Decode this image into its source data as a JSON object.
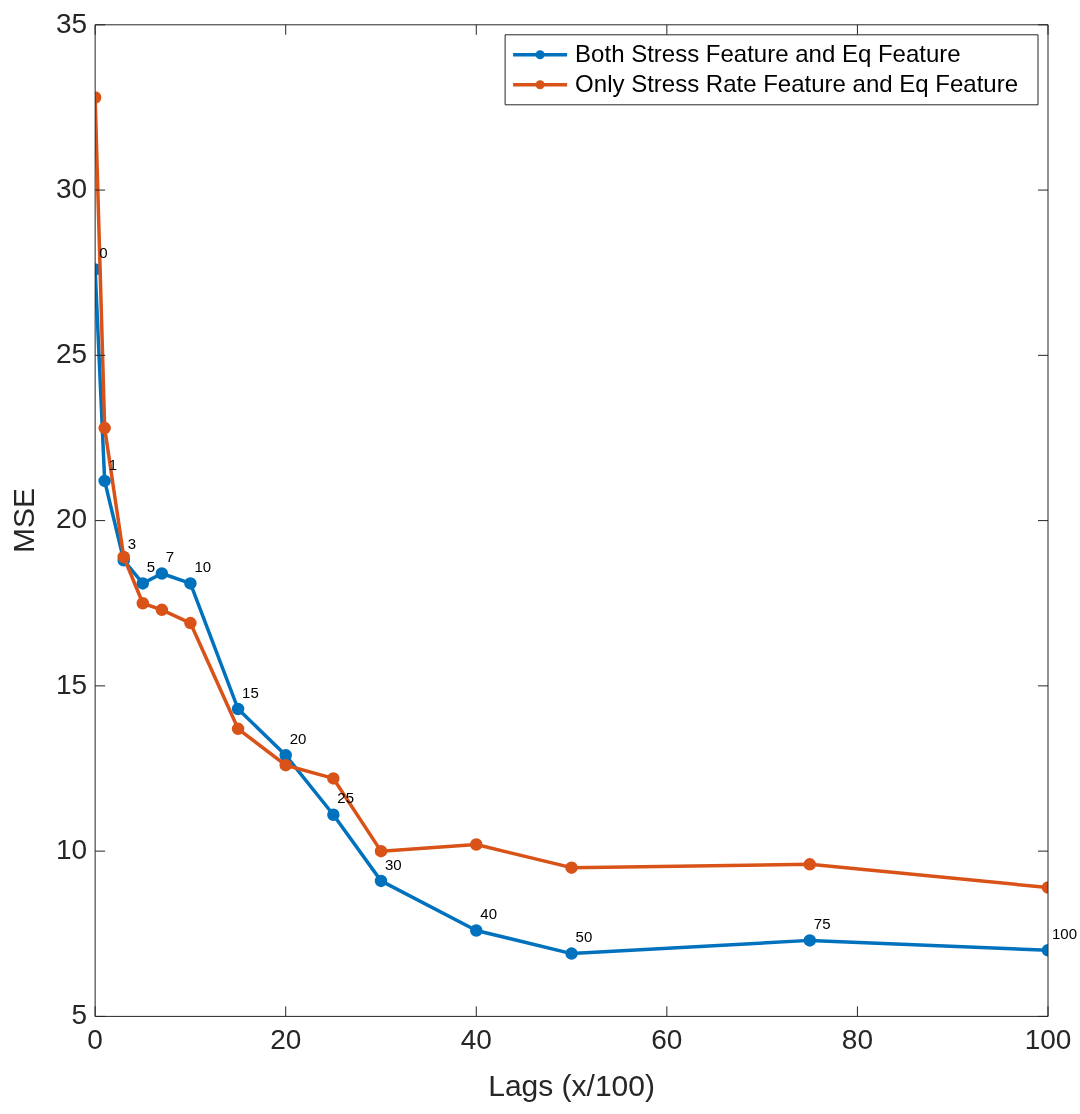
{
  "chart_data": {
    "type": "line",
    "xlabel": "Lags (x/100)",
    "ylabel": "MSE",
    "x": [
      0,
      1,
      3,
      5,
      7,
      10,
      15,
      20,
      25,
      30,
      40,
      50,
      75,
      100
    ],
    "series": [
      {
        "name": "Both Stress Feature and Eq Feature",
        "color": "#0072bd",
        "values": [
          27.6,
          21.2,
          18.8,
          18.1,
          18.4,
          18.1,
          14.3,
          12.9,
          11.1,
          9.1,
          7.6,
          6.9,
          7.3,
          7.0
        ]
      },
      {
        "name": "Only Stress Rate Feature and Eq Feature",
        "color": "#d95319",
        "values": [
          32.8,
          22.8,
          18.9,
          17.5,
          17.3,
          16.9,
          13.7,
          12.6,
          12.2,
          10.0,
          10.2,
          9.5,
          9.6,
          8.9
        ]
      }
    ],
    "xlim": [
      0,
      100
    ],
    "xticks": [
      0,
      20,
      40,
      60,
      80,
      100
    ],
    "ylim": [
      5,
      35
    ],
    "yticks": [
      5,
      10,
      15,
      20,
      25,
      30,
      35
    ],
    "grid": false,
    "legend": "top right",
    "marker": "circle",
    "line_style": "solid",
    "annotations": [
      {
        "text": "0",
        "x": 0,
        "y": 27.6
      },
      {
        "text": "1",
        "x": 1,
        "y": 21.2
      },
      {
        "text": "3",
        "x": 3,
        "y": 18.8
      },
      {
        "text": "5",
        "x": 5,
        "y": 18.1
      },
      {
        "text": "7",
        "x": 7,
        "y": 18.4
      },
      {
        "text": "10",
        "x": 10,
        "y": 18.1
      },
      {
        "text": "15",
        "x": 15,
        "y": 14.3
      },
      {
        "text": "20",
        "x": 20,
        "y": 12.9
      },
      {
        "text": "25",
        "x": 25,
        "y": 11.1
      },
      {
        "text": "30",
        "x": 30,
        "y": 9.1
      },
      {
        "text": "40",
        "x": 40,
        "y": 7.6
      },
      {
        "text": "50",
        "x": 50,
        "y": 6.9
      },
      {
        "text": "75",
        "x": 75,
        "y": 7.3
      },
      {
        "text": "100",
        "x": 100,
        "y": 7.0
      }
    ]
  }
}
